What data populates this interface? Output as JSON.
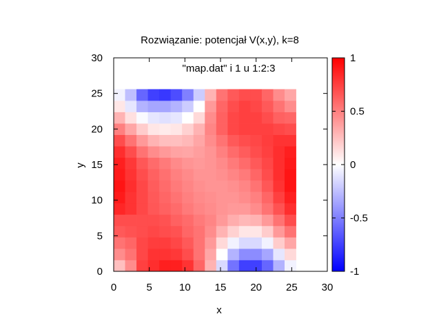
{
  "chart_data": {
    "type": "heatmap",
    "title": "Rozwiązanie: potencjał V(x,y), k=8",
    "legend_label": "\"map.dat\" i 1 u 1:2:3",
    "xlabel": "x",
    "ylabel": "y",
    "xlim": [
      0,
      30
    ],
    "ylim": [
      0,
      30
    ],
    "zlim": [
      -1,
      1
    ],
    "x_ticks": [
      "0",
      "5",
      "10",
      "15",
      "20",
      "25",
      "30"
    ],
    "y_ticks": [
      "0",
      "5",
      "10",
      "15",
      "20",
      "25",
      "30"
    ],
    "colorbar_ticks": [
      "-1",
      "-0.5",
      "0",
      "0.5",
      "1"
    ],
    "colormap": {
      "low": "#0000ff",
      "mid": "#ffffff",
      "high": "#ff0000"
    },
    "grid": false,
    "cell_size": 1.6,
    "x": [
      0.8,
      2.4,
      4.0,
      5.6,
      7.2,
      8.8,
      10.4,
      12.0,
      13.6,
      15.2,
      16.8,
      18.4,
      20.0,
      21.6,
      23.2,
      24.8
    ],
    "y": [
      0.8,
      2.4,
      4.0,
      5.6,
      7.2,
      8.8,
      10.4,
      12.0,
      13.6,
      15.2,
      16.8,
      18.4,
      20.0,
      21.6,
      23.2,
      24.8
    ],
    "z": [
      [
        0.25,
        0.45,
        0.75,
        0.82,
        0.88,
        0.88,
        0.8,
        0.6,
        0.3,
        -0.15,
        -0.55,
        -0.75,
        -0.75,
        -0.6,
        -0.3,
        -0.05
      ],
      [
        0.45,
        0.55,
        0.72,
        0.8,
        0.8,
        0.78,
        0.7,
        0.55,
        0.35,
        0.0,
        -0.3,
        -0.45,
        -0.45,
        -0.35,
        -0.1,
        0.15
      ],
      [
        0.55,
        0.6,
        0.72,
        0.76,
        0.76,
        0.72,
        0.65,
        0.55,
        0.4,
        0.15,
        -0.05,
        -0.15,
        -0.15,
        -0.05,
        0.2,
        0.35
      ],
      [
        0.65,
        0.68,
        0.7,
        0.72,
        0.7,
        0.68,
        0.6,
        0.55,
        0.45,
        0.3,
        0.18,
        0.1,
        0.1,
        0.2,
        0.4,
        0.55
      ],
      [
        0.7,
        0.7,
        0.7,
        0.7,
        0.68,
        0.62,
        0.58,
        0.52,
        0.48,
        0.4,
        0.32,
        0.28,
        0.3,
        0.4,
        0.55,
        0.7
      ],
      [
        0.85,
        0.8,
        0.72,
        0.66,
        0.62,
        0.58,
        0.52,
        0.48,
        0.45,
        0.42,
        0.4,
        0.4,
        0.45,
        0.55,
        0.68,
        0.82
      ],
      [
        0.9,
        0.8,
        0.72,
        0.65,
        0.6,
        0.55,
        0.5,
        0.46,
        0.44,
        0.42,
        0.42,
        0.45,
        0.5,
        0.6,
        0.75,
        0.88
      ],
      [
        0.92,
        0.82,
        0.72,
        0.64,
        0.58,
        0.52,
        0.48,
        0.44,
        0.42,
        0.42,
        0.44,
        0.48,
        0.55,
        0.66,
        0.8,
        0.92
      ],
      [
        0.9,
        0.8,
        0.7,
        0.62,
        0.56,
        0.5,
        0.46,
        0.42,
        0.42,
        0.44,
        0.48,
        0.52,
        0.6,
        0.7,
        0.82,
        0.92
      ],
      [
        0.88,
        0.78,
        0.66,
        0.58,
        0.52,
        0.46,
        0.42,
        0.4,
        0.42,
        0.46,
        0.52,
        0.58,
        0.65,
        0.72,
        0.82,
        0.9
      ],
      [
        0.82,
        0.7,
        0.55,
        0.45,
        0.4,
        0.36,
        0.35,
        0.38,
        0.42,
        0.5,
        0.58,
        0.64,
        0.7,
        0.75,
        0.82,
        0.88
      ],
      [
        0.7,
        0.55,
        0.4,
        0.3,
        0.25,
        0.25,
        0.28,
        0.35,
        0.45,
        0.55,
        0.65,
        0.7,
        0.72,
        0.76,
        0.8,
        0.8
      ],
      [
        0.5,
        0.35,
        0.2,
        0.1,
        0.08,
        0.1,
        0.18,
        0.3,
        0.48,
        0.62,
        0.72,
        0.75,
        0.75,
        0.75,
        0.72,
        0.7
      ],
      [
        0.3,
        0.12,
        -0.02,
        -0.1,
        -0.12,
        -0.1,
        0.0,
        0.15,
        0.45,
        0.62,
        0.72,
        0.75,
        0.75,
        0.7,
        0.62,
        0.6
      ],
      [
        0.1,
        -0.1,
        -0.3,
        -0.35,
        -0.35,
        -0.3,
        -0.2,
        0.0,
        0.4,
        0.6,
        0.7,
        0.75,
        0.72,
        0.65,
        0.55,
        0.45
      ],
      [
        -0.05,
        -0.25,
        -0.6,
        -0.75,
        -0.78,
        -0.7,
        -0.5,
        -0.2,
        0.3,
        0.55,
        0.65,
        0.7,
        0.7,
        0.6,
        0.45,
        0.35
      ]
    ]
  }
}
